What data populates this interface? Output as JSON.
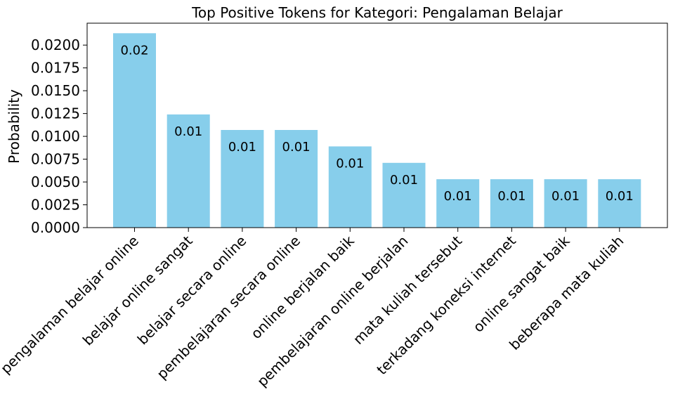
{
  "chart_data": {
    "type": "bar",
    "title": "Top Positive Tokens for Kategori: Pengalaman Belajar",
    "xlabel": "",
    "ylabel": "Probability",
    "categories": [
      "pengalaman belajar online",
      "belajar online sangat",
      "belajar secara online",
      "pembelajaran secara online",
      "online berjalan baik",
      "pembelajaran online berjalan",
      "mata kuliah tersebut",
      "terkadang koneksi internet",
      "online sangat baik",
      "beberapa mata kuliah"
    ],
    "values": [
      0.0213,
      0.0124,
      0.0107,
      0.0107,
      0.0089,
      0.0071,
      0.0053,
      0.0053,
      0.0053,
      0.0053
    ],
    "data_labels": [
      "0.02",
      "0.01",
      "0.01",
      "0.01",
      "0.01",
      "0.01",
      "0.01",
      "0.01",
      "0.01",
      "0.01"
    ],
    "ylim": [
      0,
      0.0224
    ],
    "yticks": [
      "0.0000",
      "0.0025",
      "0.0050",
      "0.0075",
      "0.0100",
      "0.0125",
      "0.0150",
      "0.0175",
      "0.0200"
    ],
    "ytick_values": [
      0,
      0.0025,
      0.005,
      0.0075,
      0.01,
      0.0125,
      0.015,
      0.0175,
      0.02
    ],
    "grid": false,
    "bar_color": "#87ceeb",
    "axis_color": "#000000"
  }
}
